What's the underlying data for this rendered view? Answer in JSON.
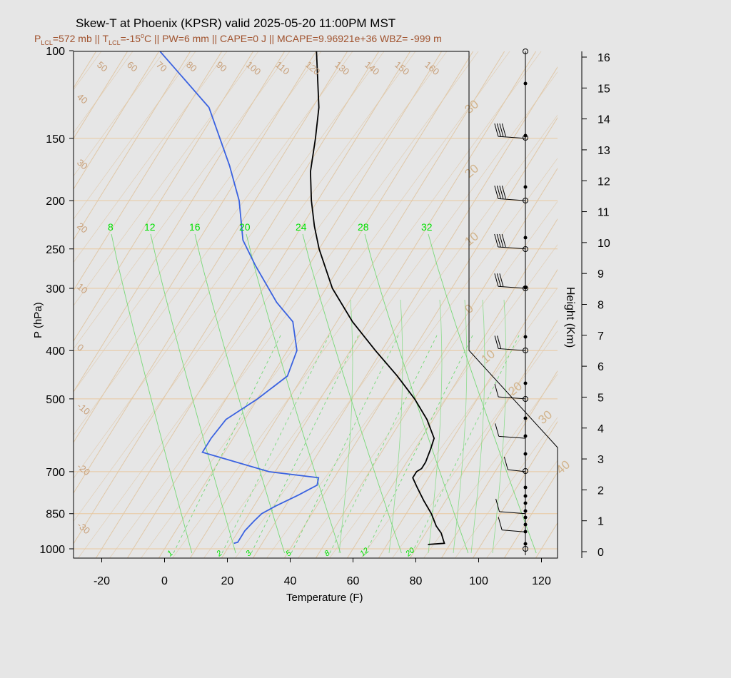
{
  "title": "Skew-T at Phoenix (KPSR) valid 2025-05-20 11:00PM MST",
  "subtitle": {
    "p_lcl_prefix": "P",
    "p_lcl_sub": "LCL",
    "p_lcl_val": "=572 mb || T",
    "t_lcl_sub": "LCL",
    "t_lcl_val": "=-15",
    "deg": "o",
    "rest": "C || PW=6 mm || CAPE=0 J || MCAPE=9.96921e+36 WBZ= -999 m"
  },
  "colors": {
    "temperature": "#000000",
    "dewpoint": "#3a62e0",
    "isotherm": "#e0c8a8",
    "mixing_ratio": "#78d878",
    "label_brown": "#c8a07a",
    "mix_label": "#00e000",
    "plot_bg": "#e6e6e6"
  },
  "chart_data": {
    "type": "skew-t",
    "title": "Skew-T at Phoenix (KPSR) valid 2025-05-20 11:00PM MST",
    "xlabel": "Temperature (F)",
    "ylabel": "P (hPa)",
    "y2label": "Height (Km)",
    "xlim": [
      -28,
      125
    ],
    "ylim_hpa": [
      1030,
      100
    ],
    "x_ticks": [
      -20,
      0,
      20,
      40,
      60,
      80,
      100,
      120
    ],
    "p_ticks": [
      100,
      150,
      200,
      250,
      300,
      400,
      500,
      700,
      850,
      1000
    ],
    "height_ticks_km": [
      0,
      1,
      2,
      3,
      4,
      5,
      6,
      7,
      8,
      9,
      10,
      11,
      12,
      13,
      14,
      15,
      16
    ],
    "isotherm_labels_top": [
      "50",
      "60",
      "70",
      "80",
      "90",
      "100",
      "110",
      "120",
      "130",
      "140",
      "150",
      "160"
    ],
    "isotherm_labels_left": [
      "40",
      "30",
      "20",
      "10",
      "0",
      "-10",
      "-20",
      "-30"
    ],
    "isotherm_labels_right": [
      "30",
      "20",
      "10",
      "0",
      "10",
      "20",
      "30",
      "40"
    ],
    "mixing_ratio_labels_top": [
      "8",
      "12",
      "16",
      "20",
      "24",
      "28",
      "32"
    ],
    "mixing_ratio_labels_bottom": [
      "1",
      "2",
      "3",
      "5",
      "8",
      "12",
      "20"
    ],
    "series": [
      {
        "name": "Temperature",
        "p": [
          980,
          975,
          960,
          930,
          900,
          850,
          800,
          750,
          720,
          700,
          690,
          670,
          630,
          600,
          550,
          500,
          450,
          400,
          350,
          300,
          250,
          225,
          200,
          175,
          150,
          130,
          100
        ],
        "t": [
          83,
          88,
          87,
          85,
          82,
          78,
          73,
          68,
          65,
          65,
          66,
          66,
          65,
          64,
          58,
          50,
          40,
          28,
          15,
          2,
          -10,
          -16,
          -22,
          -28,
          -33,
          -38,
          -50
        ]
      },
      {
        "name": "Dewpoint",
        "p": [
          975,
          970,
          950,
          920,
          880,
          850,
          820,
          780,
          745,
          720,
          700,
          640,
          600,
          550,
          500,
          450,
          400,
          350,
          320,
          270,
          240,
          200,
          170,
          130,
          100
        ],
        "t": [
          21,
          22,
          22,
          22,
          23,
          24,
          27,
          32,
          36,
          35,
          18,
          -7,
          -7,
          -6,
          0,
          5,
          3,
          -4,
          -13,
          -27,
          -36,
          -45,
          -55,
          -73,
          -100
        ]
      }
    ],
    "wind_barbs": [
      {
        "p": 150,
        "speed_kt": 40,
        "dir": 255
      },
      {
        "p": 200,
        "speed_kt": 40,
        "dir": 255
      },
      {
        "p": 250,
        "speed_kt": 40,
        "dir": 260
      },
      {
        "p": 300,
        "speed_kt": 30,
        "dir": 255
      },
      {
        "p": 400,
        "speed_kt": 15,
        "dir": 250
      },
      {
        "p": 500,
        "speed_kt": 10,
        "dir": 250
      },
      {
        "p": 600,
        "speed_kt": 10,
        "dir": 240
      },
      {
        "p": 700,
        "speed_kt": 10,
        "dir": 140
      },
      {
        "p": 850,
        "speed_kt": 10,
        "dir": 230
      },
      {
        "p": 925,
        "speed_kt": 5,
        "dir": 200
      }
    ],
    "grid": true
  }
}
